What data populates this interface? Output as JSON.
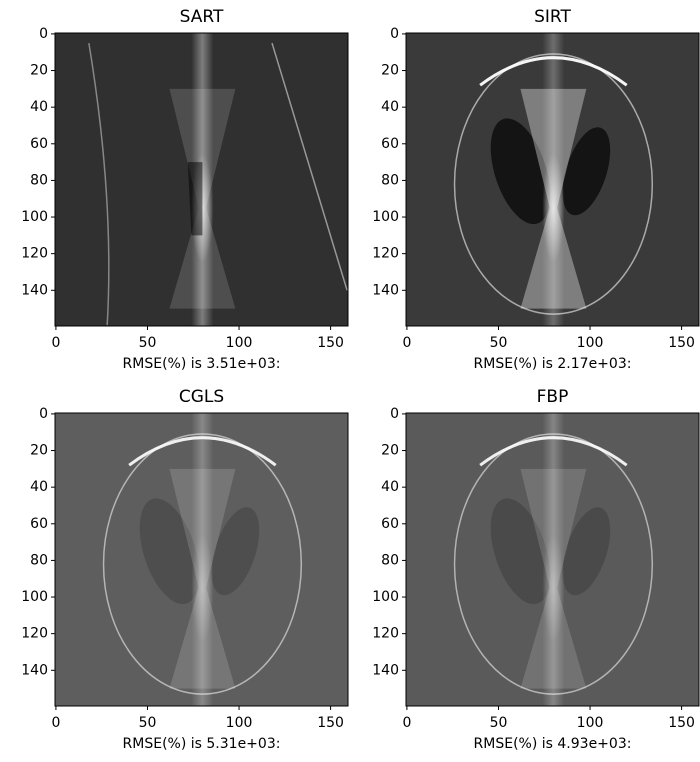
{
  "chart_data": [
    {
      "type": "image",
      "title": "SART",
      "xlabel": "RMSE(%) is 3.51e+03:",
      "xlim": [
        -0.5,
        159.5
      ],
      "ylim": [
        159.5,
        -0.5
      ],
      "xticks": [
        0,
        50,
        100,
        150
      ],
      "yticks": [
        0,
        20,
        40,
        60,
        80,
        100,
        120,
        140
      ]
    },
    {
      "type": "image",
      "title": "SIRT",
      "xlabel": "RMSE(%) is 2.17e+03:",
      "xlim": [
        -0.5,
        159.5
      ],
      "ylim": [
        159.5,
        -0.5
      ],
      "xticks": [
        0,
        50,
        100,
        150
      ],
      "yticks": [
        0,
        20,
        40,
        60,
        80,
        100,
        120,
        140
      ]
    },
    {
      "type": "image",
      "title": "CGLS",
      "xlabel": "RMSE(%) is 5.31e+03:",
      "xlim": [
        -0.5,
        159.5
      ],
      "ylim": [
        159.5,
        -0.5
      ],
      "xticks": [
        0,
        50,
        100,
        150
      ],
      "yticks": [
        0,
        20,
        40,
        60,
        80,
        100,
        120,
        140
      ]
    },
    {
      "type": "image",
      "title": "FBP",
      "xlabel": "RMSE(%) is 4.93e+03:",
      "xlim": [
        -0.5,
        159.5
      ],
      "ylim": [
        159.5,
        -0.5
      ],
      "xticks": [
        0,
        50,
        100,
        150
      ],
      "yticks": [
        0,
        20,
        40,
        60,
        80,
        100,
        120,
        140
      ]
    }
  ]
}
